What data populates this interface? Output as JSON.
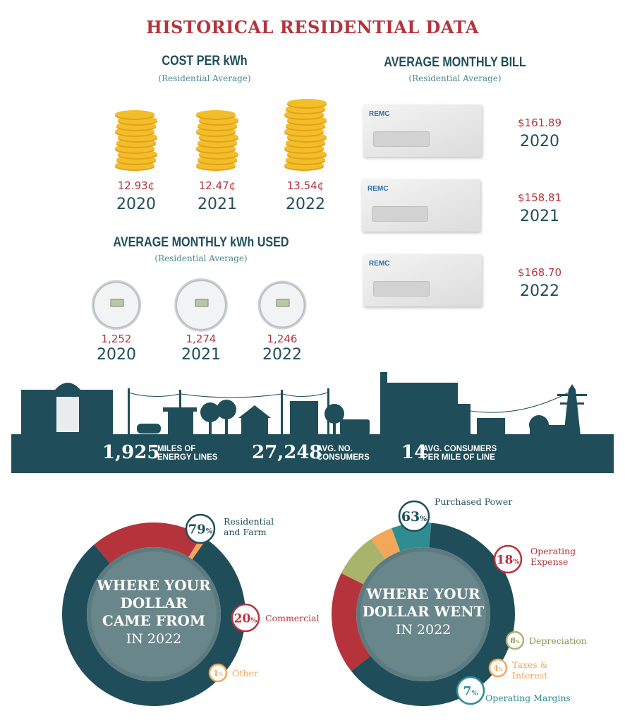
{
  "main_title": "HISTORICAL RESIDENTIAL DATA",
  "colors": {
    "red": "#b5343c",
    "teal": "#1f4e5a",
    "orange": "#f4a65a",
    "olive": "#a8b46a",
    "cyan": "#2f8d92",
    "gold": "#f2be2a"
  },
  "chart_data": [
    {
      "type": "bar",
      "title": "COST PER kWh",
      "subtitle": "(Residential Average)",
      "categories": [
        "2020",
        "2021",
        "2022"
      ],
      "values": [
        12.93,
        12.47,
        13.54
      ],
      "labels": [
        "12.93¢",
        "12.47¢",
        "13.54¢"
      ],
      "icon": "coin-stack-icon"
    },
    {
      "type": "bar",
      "title": "AVERAGE MONTHLY kWh USED",
      "subtitle": "(Residential Average)",
      "categories": [
        "2020",
        "2021",
        "2022"
      ],
      "values": [
        1252,
        1274,
        1246
      ],
      "labels": [
        "1,252",
        "1,274",
        "1,246"
      ],
      "icon": "electric-meter-icon"
    },
    {
      "type": "bar",
      "title": "AVERAGE MONTHLY BILL",
      "subtitle": "(Residential Average)",
      "categories": [
        "2020",
        "2021",
        "2022"
      ],
      "values": [
        161.89,
        158.81,
        168.7
      ],
      "labels": [
        "$161.89",
        "$158.81",
        "$168.70"
      ],
      "icon": "envelope-icon",
      "envelope_logo": "REMC"
    },
    {
      "type": "pie",
      "title_lines": [
        "WHERE YOUR",
        "DOLLAR",
        "CAME FROM"
      ],
      "title_year": "IN 2022",
      "slices": [
        {
          "label": "Residential and Farm",
          "label_lines": [
            "Residential",
            "and Farm"
          ],
          "value": 79,
          "badge": "79",
          "color": "#1f4e5a"
        },
        {
          "label": "Commercial",
          "label_lines": [
            "Commercial"
          ],
          "value": 20,
          "badge": "20",
          "color": "#b5343c"
        },
        {
          "label": "Other",
          "label_lines": [
            "Other"
          ],
          "value": 1,
          "badge": "1",
          "color": "#f4a65a"
        }
      ]
    },
    {
      "type": "pie",
      "title_lines": [
        "WHERE YOUR",
        "DOLLAR WENT"
      ],
      "title_year": "IN 2022",
      "slices": [
        {
          "label": "Purchased Power",
          "label_lines": [
            "Purchased Power"
          ],
          "value": 63,
          "badge": "63",
          "color": "#1f4e5a"
        },
        {
          "label": "Operating Expense",
          "label_lines": [
            "Operating",
            "Expense"
          ],
          "value": 18,
          "badge": "18",
          "color": "#b5343c"
        },
        {
          "label": "Depreciation",
          "label_lines": [
            "Depreciation"
          ],
          "value": 8,
          "badge": "8",
          "color": "#a8b46a"
        },
        {
          "label": "Taxes & Interest",
          "label_lines": [
            "Taxes &",
            "Interest"
          ],
          "value": 4,
          "badge": "4",
          "color": "#f4a65a"
        },
        {
          "label": "Operating Margins",
          "label_lines": [
            "Operating Margins"
          ],
          "value": 7,
          "badge": "7",
          "color": "#2f8d92"
        }
      ]
    }
  ],
  "stats": [
    {
      "number": "1,925",
      "label_line1": "MILES OF",
      "label_line2": "ENERGY LINES"
    },
    {
      "number": "27,248",
      "label_line1": "AVG. NO.",
      "label_line2": "CONSUMERS"
    },
    {
      "number": "14",
      "label_line1": "AVG. CONSUMERS",
      "label_line2": "PER MILE OF LINE"
    }
  ],
  "percent_sign": "%"
}
